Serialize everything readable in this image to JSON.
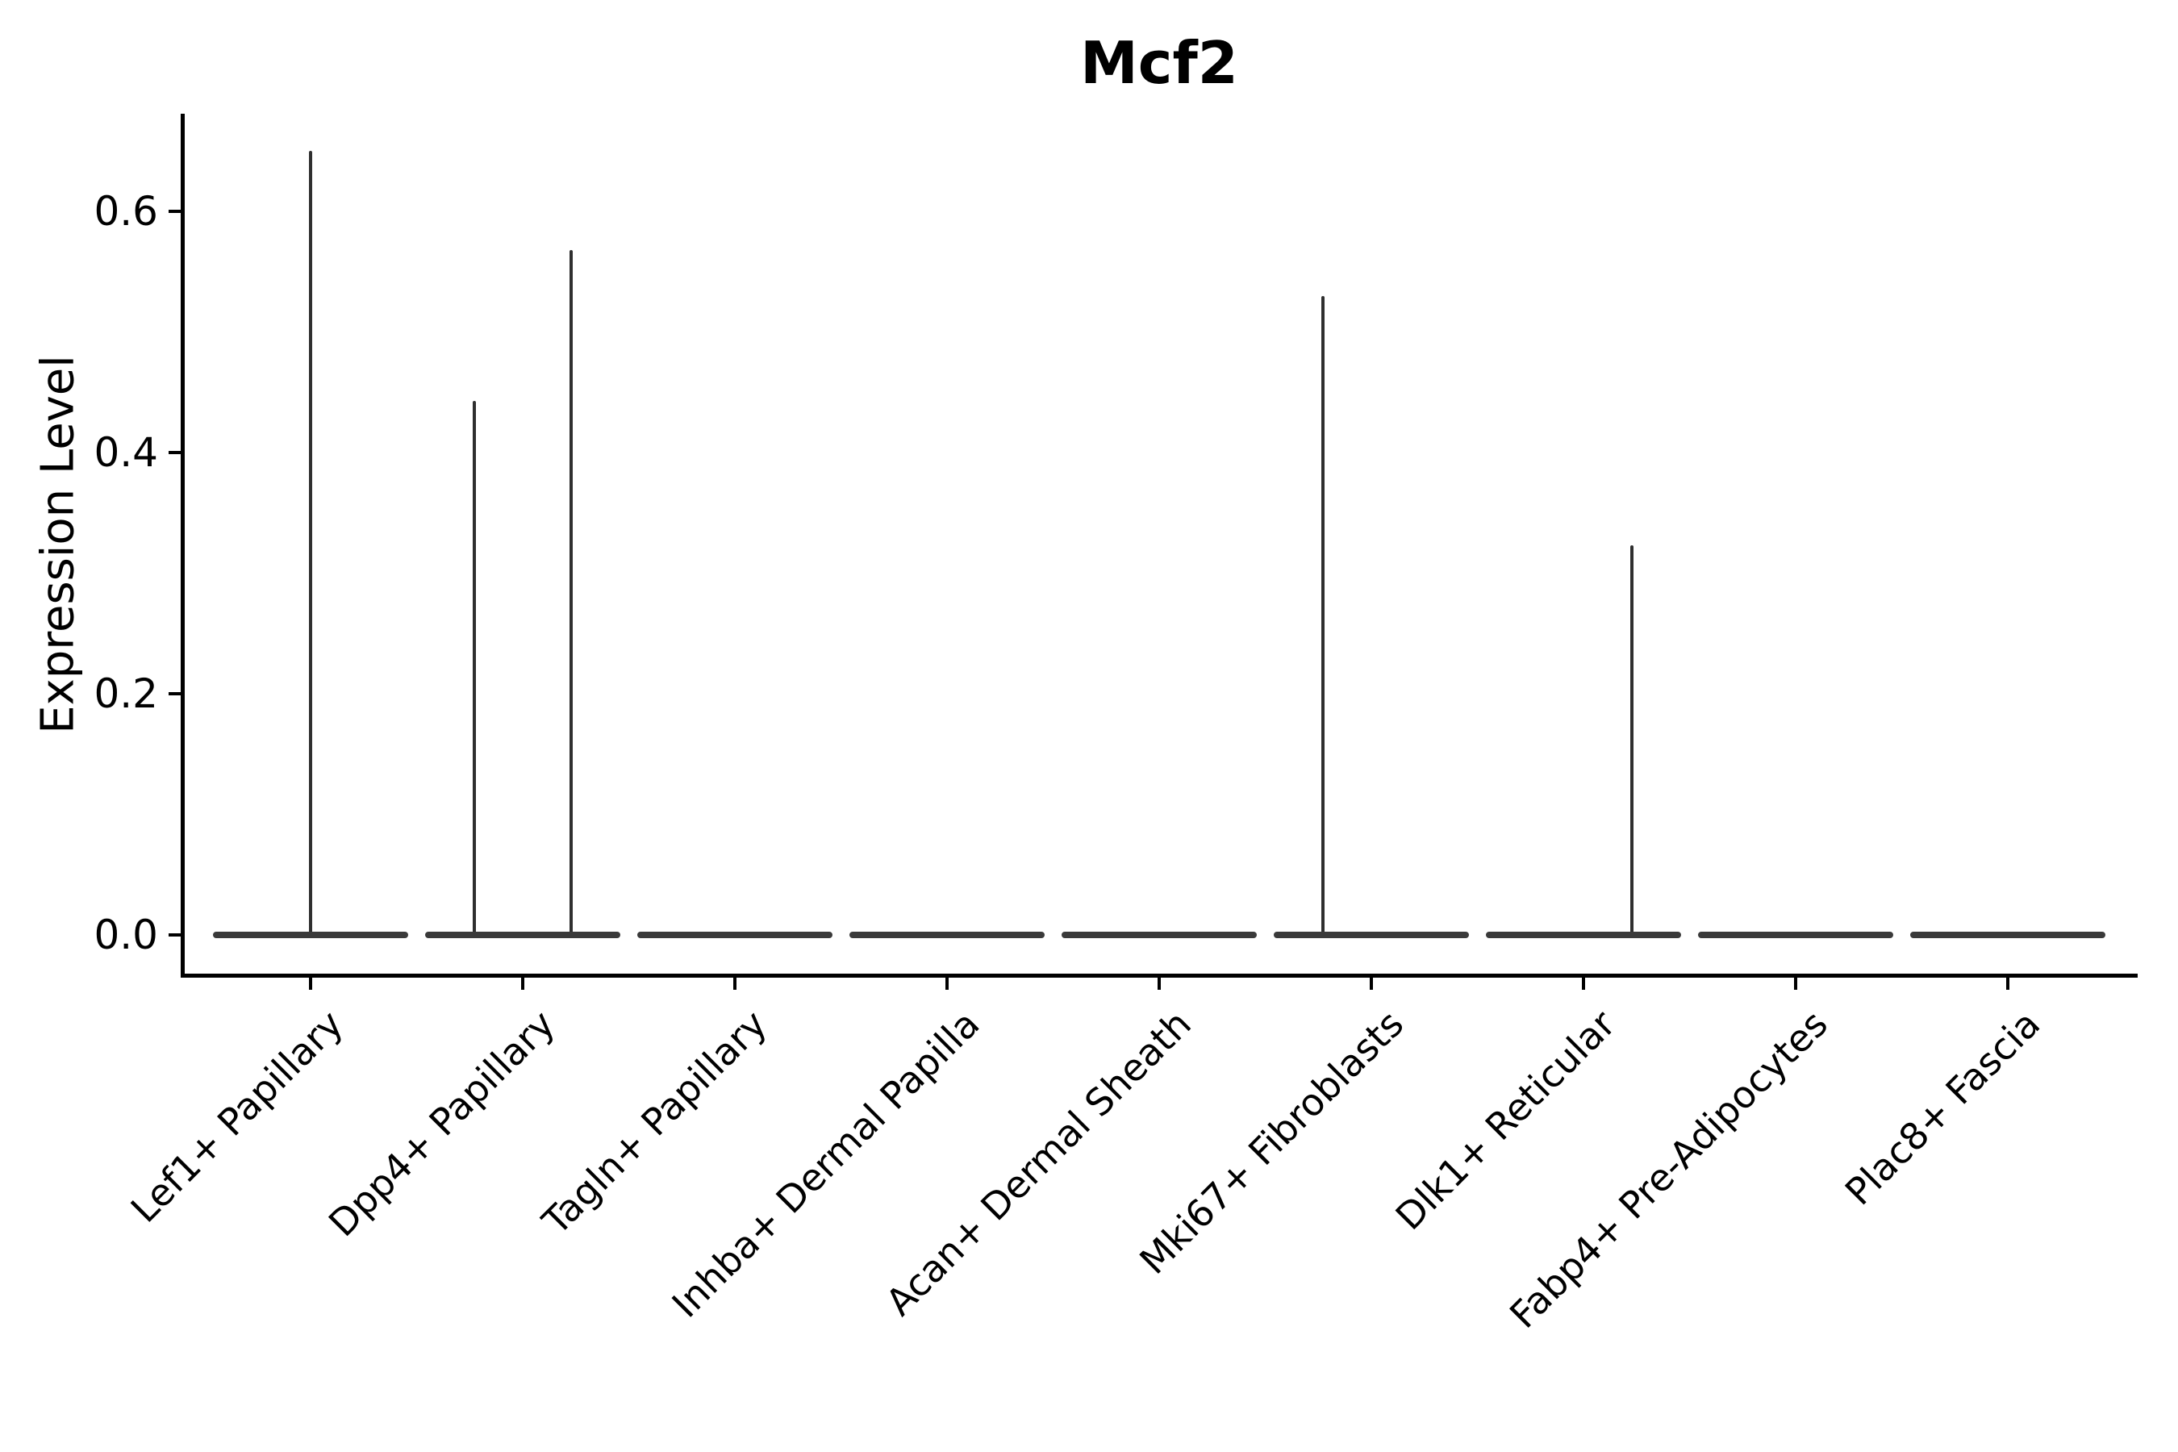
{
  "title": "Mcf2",
  "axes": {
    "ylabel": "Expression Level"
  },
  "chart_data": {
    "type": "violin",
    "title": "Mcf2",
    "xlabel": "",
    "ylabel": "Expression Level",
    "grid": false,
    "legend": "none",
    "ylim": [
      -0.034,
      0.681
    ],
    "y_ticks": [
      0.0,
      0.2,
      0.4,
      0.6
    ],
    "y_tick_labels": [
      "0.0",
      "0.2",
      "0.4",
      "0.6"
    ],
    "categories": [
      "Lef1+ Papillary",
      "Dpp4+ Papillary",
      "Tagln+ Papillary",
      "Inhba+ Dermal Papilla",
      "Acan+ Dermal Sheath",
      "Mki67+ Fibroblasts",
      "Dlk1+ Reticular",
      "Fabp4+ Pre-Adipocytes",
      "Plac8+ Fascia"
    ],
    "violins": [
      {
        "category": "Lef1+ Papillary",
        "base_value": 0.0,
        "max_value": 0.65,
        "spikes": [
          {
            "offset_frac": 0.0,
            "value": 0.65
          }
        ]
      },
      {
        "category": "Dpp4+ Papillary",
        "base_value": 0.0,
        "max_value": 0.568,
        "spikes": [
          {
            "offset_frac": -0.228,
            "value": 0.443
          },
          {
            "offset_frac": 0.228,
            "value": 0.568
          }
        ]
      },
      {
        "category": "Tagln+ Papillary",
        "base_value": 0.0,
        "max_value": 0.0,
        "spikes": []
      },
      {
        "category": "Inhba+ Dermal Papilla",
        "base_value": 0.0,
        "max_value": 0.0,
        "spikes": []
      },
      {
        "category": "Acan+ Dermal Sheath",
        "base_value": 0.0,
        "max_value": 0.0,
        "spikes": []
      },
      {
        "category": "Mki67+ Fibroblasts",
        "base_value": 0.0,
        "max_value": 0.53,
        "spikes": [
          {
            "offset_frac": -0.228,
            "value": 0.53
          }
        ]
      },
      {
        "category": "Dlk1+ Reticular",
        "base_value": 0.0,
        "max_value": 0.323,
        "spikes": [
          {
            "offset_frac": 0.228,
            "value": 0.323
          }
        ]
      },
      {
        "category": "Fabp4+ Pre-Adipocytes",
        "base_value": 0.0,
        "max_value": 0.0,
        "spikes": []
      },
      {
        "category": "Plac8+ Fascia",
        "base_value": 0.0,
        "max_value": 0.0,
        "spikes": []
      }
    ],
    "colors": {
      "background": "#ffffff",
      "axis": "#000000",
      "text": "#000000",
      "violin_body": "#3a3a3a",
      "violin_spike": "#2f2f2f"
    }
  }
}
